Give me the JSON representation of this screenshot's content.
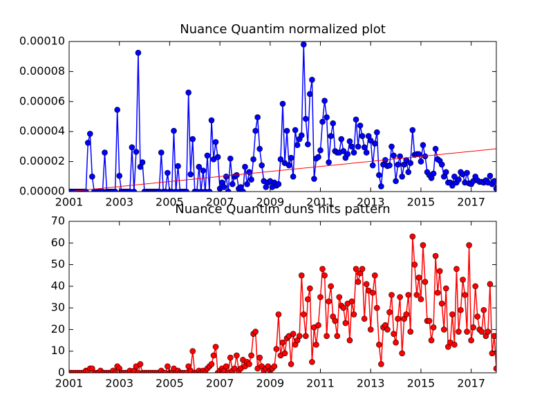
{
  "chart_data": [
    {
      "type": "line",
      "title": "Nuance Quantim normalized plot",
      "xlim": [
        2001,
        2018
      ],
      "xticks": [
        2001,
        2003,
        2005,
        2007,
        2009,
        2011,
        2013,
        2015,
        2017
      ],
      "ylim": [
        0,
        0.0001
      ],
      "yticks": [
        {
          "value": 0,
          "label": "0.00000"
        },
        {
          "value": 2e-05,
          "label": "0.00002"
        },
        {
          "value": 4e-05,
          "label": "0.00004"
        },
        {
          "value": 6e-05,
          "label": "0.00006"
        },
        {
          "value": 8e-05,
          "label": "0.00008"
        },
        {
          "value": 0.0001,
          "label": "0.00010"
        }
      ],
      "grid": false,
      "x": [
        2001,
        2001.083,
        2001.167,
        2001.25,
        2001.333,
        2001.417,
        2001.5,
        2001.583,
        2001.667,
        2001.75,
        2001.833,
        2001.917,
        2002,
        2002.083,
        2002.167,
        2002.25,
        2002.333,
        2002.417,
        2002.5,
        2002.583,
        2002.667,
        2002.75,
        2002.833,
        2002.917,
        2003,
        2003.083,
        2003.167,
        2003.25,
        2003.333,
        2003.417,
        2003.5,
        2003.583,
        2003.667,
        2003.75,
        2003.833,
        2003.917,
        2004,
        2004.083,
        2004.167,
        2004.25,
        2004.333,
        2004.417,
        2004.5,
        2004.583,
        2004.667,
        2004.75,
        2004.833,
        2004.917,
        2005,
        2005.083,
        2005.167,
        2005.25,
        2005.333,
        2005.417,
        2005.5,
        2005.583,
        2005.667,
        2005.75,
        2005.833,
        2005.917,
        2006,
        2006.083,
        2006.167,
        2006.25,
        2006.333,
        2006.417,
        2006.5,
        2006.583,
        2006.667,
        2006.75,
        2006.833,
        2006.917,
        2007,
        2007.083,
        2007.167,
        2007.25,
        2007.333,
        2007.417,
        2007.5,
        2007.583,
        2007.667,
        2007.75,
        2007.833,
        2007.917,
        2008,
        2008.083,
        2008.167,
        2008.25,
        2008.333,
        2008.417,
        2008.5,
        2008.583,
        2008.667,
        2008.75,
        2008.833,
        2008.917,
        2009,
        2009.083,
        2009.167,
        2009.25,
        2009.333,
        2009.417,
        2009.5,
        2009.583,
        2009.667,
        2009.75,
        2009.833,
        2009.917,
        2010,
        2010.083,
        2010.167,
        2010.25,
        2010.333,
        2010.417,
        2010.5,
        2010.583,
        2010.667,
        2010.75,
        2010.833,
        2010.917,
        2011,
        2011.083,
        2011.167,
        2011.25,
        2011.333,
        2011.417,
        2011.5,
        2011.583,
        2011.667,
        2011.75,
        2011.833,
        2011.917,
        2012,
        2012.083,
        2012.167,
        2012.25,
        2012.333,
        2012.417,
        2012.5,
        2012.583,
        2012.667,
        2012.75,
        2012.833,
        2012.917,
        2013,
        2013.083,
        2013.167,
        2013.25,
        2013.333,
        2013.417,
        2013.5,
        2013.583,
        2013.667,
        2013.75,
        2013.833,
        2013.917,
        2014,
        2014.083,
        2014.167,
        2014.25,
        2014.333,
        2014.417,
        2014.5,
        2014.583,
        2014.667,
        2014.75,
        2014.833,
        2014.917,
        2015,
        2015.083,
        2015.167,
        2015.25,
        2015.333,
        2015.417,
        2015.5,
        2015.583,
        2015.667,
        2015.75,
        2015.833,
        2015.917,
        2016,
        2016.083,
        2016.167,
        2016.25,
        2016.333,
        2016.417,
        2016.5,
        2016.583,
        2016.667,
        2016.75,
        2016.833,
        2016.917,
        2017,
        2017.083,
        2017.167,
        2017.25,
        2017.333,
        2017.417,
        2017.5,
        2017.583,
        2017.667,
        2017.75,
        2017.833,
        2017.917,
        2018
      ],
      "series": [
        {
          "color": "#0000ff",
          "values": [
            0,
            0,
            0,
            0,
            0,
            0,
            0,
            0,
            0,
            3.25e-05,
            3.85e-05,
            1e-05,
            0,
            0,
            0,
            0,
            0,
            2.6e-05,
            0,
            0,
            0,
            0,
            0,
            5.45e-05,
            1.05e-05,
            0,
            0,
            0,
            0,
            0,
            2.95e-05,
            0,
            2.65e-05,
            9.25e-05,
            1.65e-05,
            1.95e-05,
            0,
            0,
            0,
            0,
            0,
            0,
            0,
            0,
            2.6e-05,
            0,
            0,
            1.25e-05,
            0,
            0,
            4.05e-05,
            0,
            1.7e-05,
            0,
            0,
            0,
            0,
            6.6e-05,
            1.15e-05,
            3.5e-05,
            0,
            0,
            1.65e-05,
            0,
            1.4e-05,
            0,
            2.4e-05,
            0,
            4.75e-05,
            2.15e-05,
            3.3e-05,
            2.3e-05,
            2e-06,
            6e-06,
            3e-06,
            1e-05,
            0,
            2.2e-05,
            5e-06,
            1e-05,
            1.1e-05,
            2e-06,
            3e-06,
            0,
            1.65e-05,
            5e-06,
            1.3e-05,
            8e-06,
            2.15e-05,
            4.05e-05,
            4.95e-05,
            2.85e-05,
            1.75e-05,
            7e-06,
            3e-06,
            6e-06,
            7e-06,
            3e-06,
            6e-06,
            4e-06,
            5e-06,
            2.15e-05,
            5.85e-05,
            1.9e-05,
            4.05e-05,
            1.75e-05,
            2.25e-05,
            1e-05,
            4.1e-05,
            3.1e-05,
            3.5e-05,
            3.75e-05,
            9.8e-05,
            4.85e-05,
            3.15e-05,
            6.5e-05,
            7.45e-05,
            8.5e-06,
            2.2e-05,
            2.3e-05,
            2.75e-05,
            4.65e-05,
            6.05e-05,
            4.95e-05,
            1.95e-05,
            3.7e-05,
            4.55e-05,
            2.7e-05,
            2.6e-05,
            2.6e-05,
            3.5e-05,
            2.7e-05,
            2.25e-05,
            2.5e-05,
            3.35e-05,
            3e-05,
            2.6e-05,
            4.8e-05,
            3e-05,
            4.4e-05,
            3.7e-05,
            2.95e-05,
            2.6e-05,
            3.7e-05,
            3.4e-05,
            1.75e-05,
            3.2e-05,
            3.95e-05,
            1.1e-05,
            3.5e-06,
            1.8e-05,
            2.1e-05,
            1.7e-05,
            1.75e-05,
            3e-05,
            2.4e-05,
            7e-06,
            1.8e-05,
            2.35e-05,
            1e-05,
            1.8e-05,
            2.1e-05,
            1.3e-05,
            1.9e-05,
            4.1e-05,
            2.45e-05,
            2.5e-05,
            2.5e-05,
            2e-05,
            3.1e-05,
            2.35e-05,
            1.3e-05,
            1.1e-05,
            9e-06,
            1.2e-05,
            2.85e-05,
            2.15e-05,
            2.05e-05,
            1.8e-05,
            1e-05,
            1.3e-05,
            6e-06,
            6e-06,
            4e-06,
            1e-05,
            6e-06,
            8e-06,
            1.3e-05,
            1.15e-05,
            6e-06,
            1.25e-05,
            5.5e-06,
            5e-06,
            7e-06,
            1e-05,
            7.5e-06,
            6.5e-06,
            6.5e-06,
            6e-06,
            7.5e-06,
            6e-06,
            1.05e-05,
            5e-06,
            7e-06,
            2e-06
          ]
        }
      ],
      "trend": {
        "color": "#ff0000",
        "x": [
          2001,
          2018
        ],
        "values": [
          0,
          2.85e-05
        ]
      }
    },
    {
      "type": "line",
      "title": "Nuance Quantim duns hits pattern",
      "xlim": [
        2001,
        2018
      ],
      "xticks": [
        2001,
        2003,
        2005,
        2007,
        2009,
        2011,
        2013,
        2015,
        2017
      ],
      "ylim": [
        0,
        70
      ],
      "yticks": [
        0,
        10,
        20,
        30,
        40,
        50,
        60,
        70
      ],
      "grid": false,
      "x": [
        2001,
        2001.083,
        2001.167,
        2001.25,
        2001.333,
        2001.417,
        2001.5,
        2001.583,
        2001.667,
        2001.75,
        2001.833,
        2001.917,
        2002,
        2002.083,
        2002.167,
        2002.25,
        2002.333,
        2002.417,
        2002.5,
        2002.583,
        2002.667,
        2002.75,
        2002.833,
        2002.917,
        2003,
        2003.083,
        2003.167,
        2003.25,
        2003.333,
        2003.417,
        2003.5,
        2003.583,
        2003.667,
        2003.75,
        2003.833,
        2003.917,
        2004,
        2004.083,
        2004.167,
        2004.25,
        2004.333,
        2004.417,
        2004.5,
        2004.583,
        2004.667,
        2004.75,
        2004.833,
        2004.917,
        2005,
        2005.083,
        2005.167,
        2005.25,
        2005.333,
        2005.417,
        2005.5,
        2005.583,
        2005.667,
        2005.75,
        2005.833,
        2005.917,
        2006,
        2006.083,
        2006.167,
        2006.25,
        2006.333,
        2006.417,
        2006.5,
        2006.583,
        2006.667,
        2006.75,
        2006.833,
        2006.917,
        2007,
        2007.083,
        2007.167,
        2007.25,
        2007.333,
        2007.417,
        2007.5,
        2007.583,
        2007.667,
        2007.75,
        2007.833,
        2007.917,
        2008,
        2008.083,
        2008.167,
        2008.25,
        2008.333,
        2008.417,
        2008.5,
        2008.583,
        2008.667,
        2008.75,
        2008.833,
        2008.917,
        2009,
        2009.083,
        2009.167,
        2009.25,
        2009.333,
        2009.417,
        2009.5,
        2009.583,
        2009.667,
        2009.75,
        2009.833,
        2009.917,
        2010,
        2010.083,
        2010.167,
        2010.25,
        2010.333,
        2010.417,
        2010.5,
        2010.583,
        2010.667,
        2010.75,
        2010.833,
        2010.917,
        2011,
        2011.083,
        2011.167,
        2011.25,
        2011.333,
        2011.417,
        2011.5,
        2011.583,
        2011.667,
        2011.75,
        2011.833,
        2011.917,
        2012,
        2012.083,
        2012.167,
        2012.25,
        2012.333,
        2012.417,
        2012.5,
        2012.583,
        2012.667,
        2012.75,
        2012.833,
        2012.917,
        2013,
        2013.083,
        2013.167,
        2013.25,
        2013.333,
        2013.417,
        2013.5,
        2013.583,
        2013.667,
        2013.75,
        2013.833,
        2013.917,
        2014,
        2014.083,
        2014.167,
        2014.25,
        2014.333,
        2014.417,
        2014.5,
        2014.583,
        2014.667,
        2014.75,
        2014.833,
        2014.917,
        2015,
        2015.083,
        2015.167,
        2015.25,
        2015.333,
        2015.417,
        2015.5,
        2015.583,
        2015.667,
        2015.75,
        2015.833,
        2015.917,
        2016,
        2016.083,
        2016.167,
        2016.25,
        2016.333,
        2016.417,
        2016.5,
        2016.583,
        2016.667,
        2016.75,
        2016.833,
        2016.917,
        2017,
        2017.083,
        2017.167,
        2017.25,
        2017.333,
        2017.417,
        2017.5,
        2017.583,
        2017.667,
        2017.75,
        2017.833,
        2017.917,
        2018
      ],
      "series": [
        {
          "color": "#ff0000",
          "values": [
            0,
            0,
            0,
            0,
            0,
            0,
            0,
            0,
            1,
            1,
            2,
            2,
            0,
            0,
            0,
            1,
            0,
            0,
            0,
            0,
            0,
            1,
            0,
            3,
            2,
            0,
            0,
            0,
            0,
            1,
            0,
            1,
            3,
            0,
            4,
            0,
            0,
            0,
            0,
            0,
            0,
            0,
            0,
            0,
            1,
            0,
            0,
            3,
            0,
            0,
            2,
            0,
            1,
            0,
            0,
            0,
            0,
            3,
            1,
            10,
            0,
            0,
            1,
            0,
            1,
            0,
            2,
            3,
            4,
            8,
            12,
            0,
            1,
            2,
            1,
            3,
            0,
            7,
            1,
            2,
            8,
            1,
            2,
            6,
            3,
            5,
            4,
            8,
            18,
            19,
            2,
            7,
            3,
            1,
            2,
            3,
            1,
            2,
            3,
            11,
            27,
            8,
            14,
            9,
            16,
            17,
            4,
            18,
            13,
            15,
            17,
            45,
            27,
            17,
            34,
            39,
            5,
            21,
            13,
            22,
            35,
            48,
            45,
            17,
            33,
            40,
            26,
            24,
            17,
            35,
            31,
            30,
            23,
            32,
            15,
            33,
            27,
            48,
            42,
            46,
            48,
            25,
            41,
            38,
            20,
            37,
            45,
            30,
            13,
            4,
            21,
            22,
            20,
            28,
            36,
            18,
            14,
            25,
            35,
            9,
            25,
            27,
            36,
            19,
            63,
            50,
            36,
            44,
            34,
            59,
            42,
            24,
            24,
            15,
            21,
            54,
            37,
            47,
            32,
            20,
            39,
            12,
            14,
            27,
            13,
            48,
            19,
            29,
            43,
            36,
            19,
            59,
            15,
            21,
            40,
            26,
            20,
            19,
            29,
            17,
            19,
            41,
            9,
            17,
            2
          ]
        }
      ]
    }
  ]
}
